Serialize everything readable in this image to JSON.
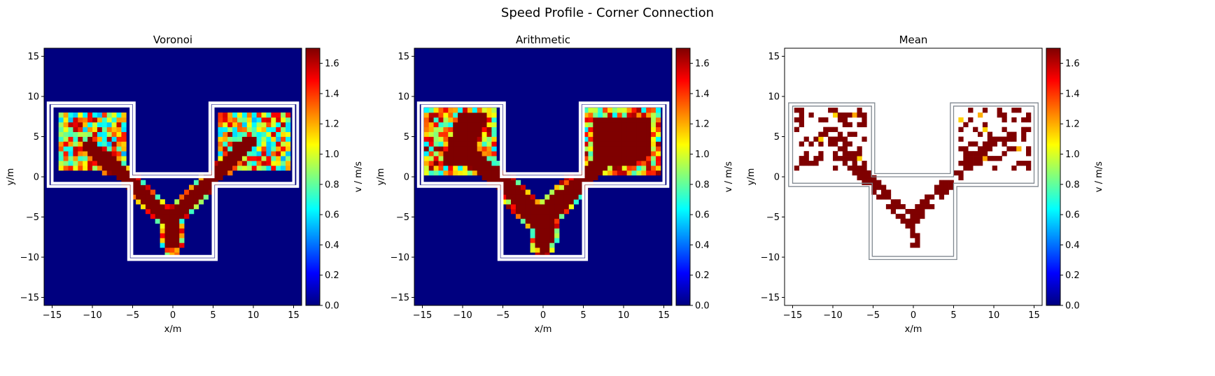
{
  "figure_title": "Speed Profile - Corner Connection",
  "colormap": [
    "#00007f",
    "#0000ff",
    "#007fff",
    "#00ffff",
    "#7fff7f",
    "#ffff00",
    "#ff7f00",
    "#ff0000",
    "#7f0000"
  ],
  "colors": {
    "background": "#ffffff",
    "wall_thick": "#ffffff",
    "wall_thin": "#808890",
    "empty_cell": "#00007f"
  },
  "chart_data": [
    {
      "type": "heatmap",
      "title": "Voronoi",
      "xlabel": "x/m",
      "ylabel": "y/m",
      "xlim": [
        -16,
        16
      ],
      "ylim": [
        -16,
        16
      ],
      "xticks": [
        -15,
        -10,
        -5,
        0,
        5,
        10,
        15
      ],
      "yticks": [
        -15,
        -10,
        -5,
        0,
        5,
        10,
        15
      ],
      "colorbar_label": "v / m/s",
      "colorbar_range": [
        0,
        1.7
      ],
      "colorbar_ticks": [
        "0.0",
        "0.2",
        "0.4",
        "0.6",
        "0.8",
        "1.0",
        "1.2",
        "1.4",
        "1.6"
      ],
      "grid": false,
      "wall_style": "thick-white",
      "fill_outside": true,
      "field_pattern": "mixed speeds in upper rooms, saturated ~1.7 m/s along diagonal paths to the lower corridor",
      "speed_min": 0.0,
      "speed_max": 1.7,
      "cell_size": 0.6
    },
    {
      "type": "heatmap",
      "title": "Arithmetic",
      "xlabel": "x/m",
      "ylabel": "y/m",
      "xlim": [
        -16,
        16
      ],
      "ylim": [
        -16,
        16
      ],
      "xticks": [
        -15,
        -10,
        -5,
        0,
        5,
        10,
        15
      ],
      "yticks": [
        -15,
        -10,
        -5,
        0,
        5,
        10,
        15
      ],
      "colorbar_label": "v / m/s",
      "colorbar_range": [
        0,
        1.7
      ],
      "colorbar_ticks": [
        "0.0",
        "0.2",
        "0.4",
        "0.6",
        "0.8",
        "1.0",
        "1.2",
        "1.4",
        "1.6"
      ],
      "grid": false,
      "wall_style": "thick-white",
      "fill_outside": true,
      "field_pattern": "broad high-speed regions in rooms, saturated diagonal bands, red tip at bottom",
      "speed_min": 0.0,
      "speed_max": 1.7,
      "cell_size": 0.6
    },
    {
      "type": "heatmap",
      "title": "Mean",
      "xlabel": "x/m",
      "ylabel": "y/m",
      "xlim": [
        -16,
        16
      ],
      "ylim": [
        -16,
        16
      ],
      "xticks": [
        -15,
        -10,
        -5,
        0,
        5,
        10,
        15
      ],
      "yticks": [
        -15,
        -10,
        -5,
        0,
        5,
        10,
        15
      ],
      "colorbar_label": "v / m/s",
      "colorbar_range": [
        0,
        1.7
      ],
      "colorbar_ticks": [
        "0.0",
        "0.2",
        "0.4",
        "0.6",
        "0.8",
        "1.0",
        "1.2",
        "1.4",
        "1.6"
      ],
      "grid": false,
      "wall_style": "thin-gray",
      "fill_outside": false,
      "field_pattern": "sparse cells, mostly saturated ~1.7 m/s, blank elsewhere",
      "speed_min": 0.0,
      "speed_max": 1.7,
      "cell_size": 0.6
    }
  ]
}
